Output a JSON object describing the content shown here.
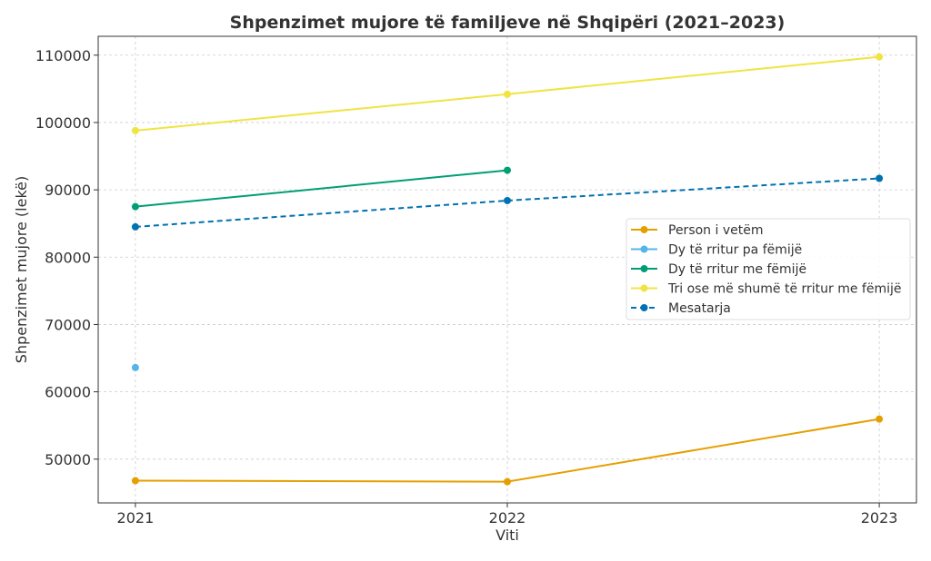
{
  "chart_data": {
    "type": "line",
    "title": "Shpenzimet mujore të familjeve në Shqipëri (2021–2023)",
    "xlabel": "Viti",
    "ylabel": "Shpenzimet mujore (lekë)",
    "x": [
      2021,
      2022,
      2023
    ],
    "x_ticks": [
      "2021",
      "2022",
      "2023"
    ],
    "xlim": [
      2020.9,
      2023.1
    ],
    "ylim": [
      43500,
      112800
    ],
    "y_ticks": [
      50000,
      60000,
      70000,
      80000,
      90000,
      100000,
      110000
    ],
    "grid": true,
    "legend_position": "center-right",
    "series": [
      {
        "name": "Person i vetëm",
        "color": "#E69F00",
        "dashed": false,
        "values": [
          46800,
          46650,
          55950
        ]
      },
      {
        "name": "Dy të rritur pa fëmijë",
        "color": "#56B4E9",
        "dashed": false,
        "values": [
          63600,
          null,
          null
        ]
      },
      {
        "name": "Dy të rritur me fëmijë",
        "color": "#009E73",
        "dashed": false,
        "values": [
          87500,
          92900,
          null
        ]
      },
      {
        "name": "Tri ose më shumë të rritur me fëmijë",
        "color": "#F0E442",
        "dashed": false,
        "values": [
          98800,
          104200,
          109750
        ]
      },
      {
        "name": "Mesatarja",
        "color": "#0072B2",
        "dashed": true,
        "values": [
          84500,
          88400,
          91700
        ]
      }
    ]
  }
}
